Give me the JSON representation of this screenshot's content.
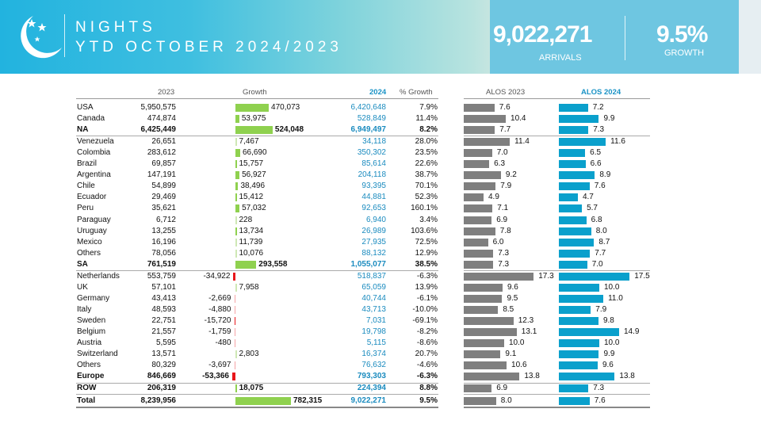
{
  "header": {
    "title": "NIGHTS",
    "subtitle": "YTD OCTOBER 2024/2023",
    "kpi_value": "9,022,271",
    "kpi_label": "ARRIVALS",
    "growth_value": "9.5%",
    "growth_label": "GROWTH",
    "icon": "moon-stars-icon"
  },
  "columns": {
    "y2023": "2023",
    "growth": "Growth",
    "y2024": "2024",
    "pct": "% Growth",
    "alos2023": "ALOS 2023",
    "alos2024": "ALOS 2024"
  },
  "colors": {
    "positive": "#8fd14f",
    "negative": "#e8161b",
    "alos2023": "#7f7f7f",
    "alos2024": "#0aa0cc",
    "accent": "#1a8bbf"
  },
  "rows": [
    {
      "name": "USA",
      "y2023": "5,950,575",
      "growth": "470,073",
      "g": 470073,
      "y2024": "6,420,648",
      "pct": "7.9%",
      "a23": "7.6",
      "a24": "7.2"
    },
    {
      "name": "Canada",
      "y2023": "474,874",
      "growth": "53,975",
      "g": 53975,
      "y2024": "528,849",
      "pct": "11.4%",
      "a23": "10.4",
      "a24": "9.9"
    },
    {
      "name": "NA",
      "y2023": "6,425,449",
      "growth": "524,048",
      "g": 524048,
      "y2024": "6,949,497",
      "pct": "8.2%",
      "a23": "7.7",
      "a24": "7.3",
      "bold": true,
      "sep": true
    },
    {
      "name": "Venezuela",
      "y2023": "26,651",
      "growth": "7,467",
      "g": 7467,
      "y2024": "34,118",
      "pct": "28.0%",
      "a23": "11.4",
      "a24": "11.6"
    },
    {
      "name": "Colombia",
      "y2023": "283,612",
      "growth": "66,690",
      "g": 66690,
      "y2024": "350,302",
      "pct": "23.5%",
      "a23": "7.0",
      "a24": "6.5"
    },
    {
      "name": "Brazil",
      "y2023": "69,857",
      "growth": "15,757",
      "g": 15757,
      "y2024": "85,614",
      "pct": "22.6%",
      "a23": "6.3",
      "a24": "6.6"
    },
    {
      "name": "Argentina",
      "y2023": "147,191",
      "growth": "56,927",
      "g": 56927,
      "y2024": "204,118",
      "pct": "38.7%",
      "a23": "9.2",
      "a24": "8.9"
    },
    {
      "name": "Chile",
      "y2023": "54,899",
      "growth": "38,496",
      "g": 38496,
      "y2024": "93,395",
      "pct": "70.1%",
      "a23": "7.9",
      "a24": "7.6"
    },
    {
      "name": "Ecuador",
      "y2023": "29,469",
      "growth": "15,412",
      "g": 15412,
      "y2024": "44,881",
      "pct": "52.3%",
      "a23": "4.9",
      "a24": "4.7"
    },
    {
      "name": "Peru",
      "y2023": "35,621",
      "growth": "57,032",
      "g": 57032,
      "y2024": "92,653",
      "pct": "160.1%",
      "a23": "7.1",
      "a24": "5.7"
    },
    {
      "name": "Paraguay",
      "y2023": "6,712",
      "growth": "228",
      "g": 228,
      "y2024": "6,940",
      "pct": "3.4%",
      "a23": "6.9",
      "a24": "6.8"
    },
    {
      "name": "Uruguay",
      "y2023": "13,255",
      "growth": "13,734",
      "g": 13734,
      "y2024": "26,989",
      "pct": "103.6%",
      "a23": "7.8",
      "a24": "8.0"
    },
    {
      "name": "Mexico",
      "y2023": "16,196",
      "growth": "11,739",
      "g": 11739,
      "y2024": "27,935",
      "pct": "72.5%",
      "a23": "6.0",
      "a24": "8.7"
    },
    {
      "name": "Others",
      "y2023": "78,056",
      "growth": "10,076",
      "g": 10076,
      "y2024": "88,132",
      "pct": "12.9%",
      "a23": "7.3",
      "a24": "7.7"
    },
    {
      "name": "SA",
      "y2023": "761,519",
      "growth": "293,558",
      "g": 293558,
      "y2024": "1,055,077",
      "pct": "38.5%",
      "a23": "7.3",
      "a24": "7.0",
      "bold": true,
      "sep": true
    },
    {
      "name": "Netherlands",
      "y2023": "553,759",
      "growth": "-34,922",
      "g": -34922,
      "y2024": "518,837",
      "pct": "-6.3%",
      "a23": "17.3",
      "a24": "17.5"
    },
    {
      "name": "UK",
      "y2023": "57,101",
      "growth": "7,958",
      "g": 7958,
      "y2024": "65,059",
      "pct": "13.9%",
      "a23": "9.6",
      "a24": "10.0"
    },
    {
      "name": "Germany",
      "y2023": "43,413",
      "growth": "-2,669",
      "g": -2669,
      "y2024": "40,744",
      "pct": "-6.1%",
      "a23": "9.5",
      "a24": "11.0"
    },
    {
      "name": "Italy",
      "y2023": "48,593",
      "growth": "-4,880",
      "g": -4880,
      "y2024": "43,713",
      "pct": "-10.0%",
      "a23": "8.5",
      "a24": "7.9"
    },
    {
      "name": "Sweden",
      "y2023": "22,751",
      "growth": "-15,720",
      "g": -15720,
      "y2024": "7,031",
      "pct": "-69.1%",
      "a23": "12.3",
      "a24": "9.8"
    },
    {
      "name": "Belgium",
      "y2023": "21,557",
      "growth": "-1,759",
      "g": -1759,
      "y2024": "19,798",
      "pct": "-8.2%",
      "a23": "13.1",
      "a24": "14.9"
    },
    {
      "name": "Austria",
      "y2023": "5,595",
      "growth": "-480",
      "g": -480,
      "y2024": "5,115",
      "pct": "-8.6%",
      "a23": "10.0",
      "a24": "10.0"
    },
    {
      "name": "Switzerland",
      "y2023": "13,571",
      "growth": "2,803",
      "g": 2803,
      "y2024": "16,374",
      "pct": "20.7%",
      "a23": "9.1",
      "a24": "9.9"
    },
    {
      "name": "Others",
      "y2023": "80,329",
      "growth": "-3,697",
      "g": -3697,
      "y2024": "76,632",
      "pct": "-4.6%",
      "a23": "10.6",
      "a24": "9.6"
    },
    {
      "name": "Europe",
      "y2023": "846,669",
      "growth": "-53,366",
      "g": -53366,
      "y2024": "793,303",
      "pct": "-6.3%",
      "a23": "13.8",
      "a24": "13.8",
      "bold": true,
      "sep": true
    },
    {
      "name": "ROW",
      "y2023": "206,319",
      "growth": "18,075",
      "g": 18075,
      "y2024": "224,394",
      "pct": "8.8%",
      "a23": "6.9",
      "a24": "7.3",
      "bold": true,
      "sep": true
    },
    {
      "name": "Total",
      "y2023": "8,239,956",
      "growth": "782,315",
      "g": 782315,
      "y2024": "9,022,271",
      "pct": "9.5%",
      "a23": "8.0",
      "a24": "7.6",
      "bold": true,
      "sep": true,
      "total": true
    }
  ]
}
